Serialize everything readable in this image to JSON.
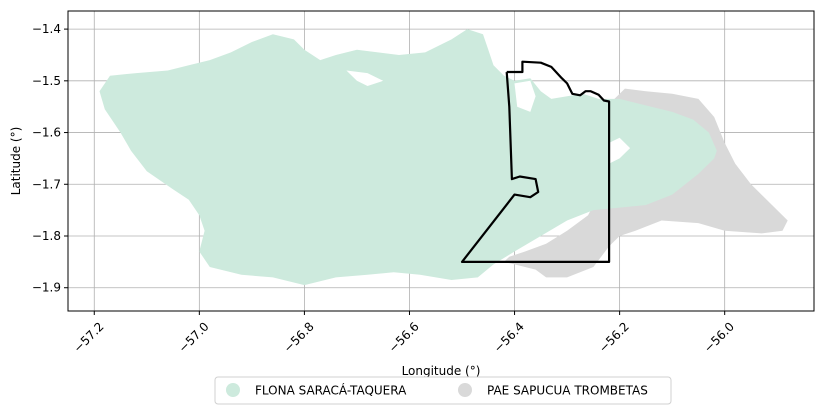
{
  "chart_data": {
    "type": "map",
    "xlabel": "Longitude (°)",
    "ylabel": "Latitude (°)",
    "xlim": [
      -57.25,
      -55.83
    ],
    "ylim": [
      -1.945,
      -1.365
    ],
    "xticks": [
      {
        "value": -57.2,
        "label": "−57.2"
      },
      {
        "value": -57.0,
        "label": "−57.0"
      },
      {
        "value": -56.8,
        "label": "−56.8"
      },
      {
        "value": -56.6,
        "label": "−56.6"
      },
      {
        "value": -56.4,
        "label": "−56.4"
      },
      {
        "value": -56.2,
        "label": "−56.2"
      },
      {
        "value": -56.0,
        "label": "−56.0"
      }
    ],
    "yticks": [
      {
        "value": -1.4,
        "label": "−1.4"
      },
      {
        "value": -1.5,
        "label": "−1.5"
      },
      {
        "value": -1.6,
        "label": "−1.6"
      },
      {
        "value": -1.7,
        "label": "−1.7"
      },
      {
        "value": -1.8,
        "label": "−1.8"
      },
      {
        "value": -1.9,
        "label": "−1.9"
      }
    ],
    "grid": true,
    "legend_placement": "bottom-center",
    "series": [
      {
        "name": "PAE SAPUCUA TROMBETAS",
        "color": "#d9d9d9",
        "polygon": [
          [
            -56.22,
            -1.545
          ],
          [
            -56.19,
            -1.515
          ],
          [
            -56.15,
            -1.52
          ],
          [
            -56.1,
            -1.525
          ],
          [
            -56.05,
            -1.535
          ],
          [
            -56.02,
            -1.57
          ],
          [
            -56.0,
            -1.62
          ],
          [
            -55.98,
            -1.66
          ],
          [
            -55.95,
            -1.7
          ],
          [
            -55.91,
            -1.74
          ],
          [
            -55.88,
            -1.77
          ],
          [
            -55.89,
            -1.79
          ],
          [
            -55.93,
            -1.795
          ],
          [
            -56.0,
            -1.79
          ],
          [
            -56.05,
            -1.775
          ],
          [
            -56.12,
            -1.77
          ],
          [
            -56.17,
            -1.79
          ],
          [
            -56.2,
            -1.8
          ],
          [
            -56.22,
            -1.82
          ],
          [
            -56.25,
            -1.86
          ],
          [
            -56.3,
            -1.88
          ],
          [
            -56.34,
            -1.88
          ],
          [
            -56.36,
            -1.865
          ],
          [
            -56.4,
            -1.855
          ],
          [
            -56.42,
            -1.85
          ],
          [
            -56.41,
            -1.84
          ],
          [
            -56.38,
            -1.83
          ],
          [
            -56.34,
            -1.815
          ],
          [
            -56.3,
            -1.79
          ],
          [
            -56.26,
            -1.76
          ],
          [
            -56.24,
            -1.72
          ],
          [
            -56.22,
            -1.7
          ],
          [
            -56.22,
            -1.62
          ]
        ]
      },
      {
        "name": "FLONA SARACÁ-TAQUERA",
        "color": "#cdeadd",
        "polygon": [
          [
            -57.17,
            -1.49
          ],
          [
            -57.12,
            -1.485
          ],
          [
            -57.06,
            -1.48
          ],
          [
            -57.02,
            -1.47
          ],
          [
            -56.98,
            -1.46
          ],
          [
            -56.94,
            -1.445
          ],
          [
            -56.9,
            -1.425
          ],
          [
            -56.86,
            -1.41
          ],
          [
            -56.82,
            -1.42
          ],
          [
            -56.8,
            -1.44
          ],
          [
            -56.77,
            -1.46
          ],
          [
            -56.74,
            -1.45
          ],
          [
            -56.7,
            -1.44
          ],
          [
            -56.66,
            -1.445
          ],
          [
            -56.62,
            -1.45
          ],
          [
            -56.57,
            -1.445
          ],
          [
            -56.52,
            -1.42
          ],
          [
            -56.49,
            -1.4
          ],
          [
            -56.46,
            -1.41
          ],
          [
            -56.45,
            -1.44
          ],
          [
            -56.44,
            -1.47
          ],
          [
            -56.42,
            -1.49
          ],
          [
            -56.4,
            -1.5
          ],
          [
            -56.37,
            -1.495
          ],
          [
            -56.35,
            -1.52
          ],
          [
            -56.33,
            -1.535
          ],
          [
            -56.3,
            -1.53
          ],
          [
            -56.27,
            -1.525
          ],
          [
            -56.24,
            -1.535
          ],
          [
            -56.2,
            -1.535
          ],
          [
            -56.16,
            -1.545
          ],
          [
            -56.1,
            -1.56
          ],
          [
            -56.06,
            -1.575
          ],
          [
            -56.03,
            -1.6
          ],
          [
            -56.015,
            -1.635
          ],
          [
            -56.02,
            -1.65
          ],
          [
            -56.05,
            -1.68
          ],
          [
            -56.1,
            -1.72
          ],
          [
            -56.15,
            -1.74
          ],
          [
            -56.2,
            -1.745
          ],
          [
            -56.25,
            -1.75
          ],
          [
            -56.3,
            -1.77
          ],
          [
            -56.35,
            -1.8
          ],
          [
            -56.4,
            -1.83
          ],
          [
            -56.44,
            -1.855
          ],
          [
            -56.47,
            -1.88
          ],
          [
            -56.52,
            -1.885
          ],
          [
            -56.58,
            -1.875
          ],
          [
            -56.63,
            -1.87
          ],
          [
            -56.68,
            -1.875
          ],
          [
            -56.74,
            -1.88
          ],
          [
            -56.8,
            -1.895
          ],
          [
            -56.86,
            -1.88
          ],
          [
            -56.92,
            -1.875
          ],
          [
            -56.98,
            -1.86
          ],
          [
            -57.0,
            -1.83
          ],
          [
            -56.99,
            -1.79
          ],
          [
            -57.0,
            -1.76
          ],
          [
            -57.02,
            -1.73
          ],
          [
            -57.05,
            -1.71
          ],
          [
            -57.1,
            -1.675
          ],
          [
            -57.13,
            -1.635
          ],
          [
            -57.15,
            -1.6
          ],
          [
            -57.18,
            -1.555
          ],
          [
            -57.19,
            -1.52
          ]
        ]
      },
      {
        "name": "",
        "color": "#000000",
        "line": [
          [
            -56.415,
            -1.483
          ],
          [
            -56.385,
            -1.483
          ],
          [
            -56.385,
            -1.463
          ],
          [
            -56.35,
            -1.465
          ],
          [
            -56.33,
            -1.473
          ],
          [
            -56.31,
            -1.495
          ],
          [
            -56.3,
            -1.505
          ],
          [
            -56.29,
            -1.525
          ],
          [
            -56.275,
            -1.528
          ],
          [
            -56.265,
            -1.52
          ],
          [
            -56.255,
            -1.52
          ],
          [
            -56.24,
            -1.527
          ],
          [
            -56.23,
            -1.538
          ],
          [
            -56.22,
            -1.54
          ],
          [
            -56.22,
            -1.85
          ],
          [
            -56.5,
            -1.85
          ],
          [
            -56.4,
            -1.72
          ],
          [
            -56.37,
            -1.725
          ],
          [
            -56.355,
            -1.715
          ],
          [
            -56.36,
            -1.69
          ],
          [
            -56.39,
            -1.685
          ],
          [
            -56.405,
            -1.69
          ],
          [
            -56.41,
            -1.55
          ],
          [
            -56.415,
            -1.483
          ]
        ]
      }
    ],
    "white_cutouts": [
      [
        [
          -56.72,
          -1.48
        ],
        [
          -56.7,
          -1.5
        ],
        [
          -56.68,
          -1.51
        ],
        [
          -56.65,
          -1.5
        ],
        [
          -56.68,
          -1.485
        ]
      ],
      [
        [
          -56.4,
          -1.505
        ],
        [
          -56.37,
          -1.5
        ],
        [
          -56.36,
          -1.53
        ],
        [
          -56.37,
          -1.56
        ],
        [
          -56.395,
          -1.55
        ]
      ],
      [
        [
          -56.22,
          -1.62
        ],
        [
          -56.2,
          -1.61
        ],
        [
          -56.18,
          -1.63
        ],
        [
          -56.2,
          -1.65
        ],
        [
          -56.22,
          -1.66
        ]
      ]
    ]
  }
}
